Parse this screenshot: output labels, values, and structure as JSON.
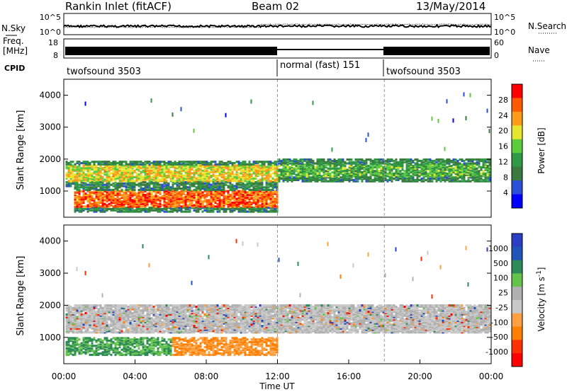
{
  "header": {
    "station": "Rankin Inlet (fitACF)",
    "beam": "Beam 02",
    "date": "13/May/2014"
  },
  "nsky_panel": {
    "left_label": "N.Sky",
    "right_label": "N.Search",
    "left_ticks": [
      "10^5",
      "10^0"
    ],
    "right_ticks": [
      "10^5",
      "10^0"
    ]
  },
  "freq_panel": {
    "left_label_line1": "Freq.",
    "left_label_line2": "[MHz]",
    "right_label": "Nave",
    "left_ticks": [
      "18",
      "8"
    ],
    "right_ticks": [
      "60",
      "0"
    ]
  },
  "cpid_panel": {
    "label": "CPID",
    "segments": [
      {
        "label": "twofsound 3503",
        "start_hour": 0
      },
      {
        "label": "normal (fast) 151",
        "start_hour": 12
      },
      {
        "label": "twofsound 3503",
        "start_hour": 18
      }
    ]
  },
  "colors": {
    "power": [
      "#0000ff",
      "#2b4fd9",
      "#3a7a3e",
      "#2f9a45",
      "#5ccc3d",
      "#e6e62e",
      "#ff9b1a",
      "#ff5a00",
      "#ff0000"
    ],
    "velocity": [
      "#2a3fc4",
      "#1f55b8",
      "#2e8b57",
      "#63c34a",
      "#b0b0b0",
      "#c8c8c8",
      "#ffa040",
      "#ff7f00",
      "#ff3000",
      "#ff0000"
    ]
  },
  "chart_data": [
    {
      "type": "heatmap",
      "name": "Power",
      "xlabel": "",
      "ylabel": "Slant Range [km]",
      "xlim": [
        0,
        24
      ],
      "ylim": [
        180,
        4500
      ],
      "y_ticks": [
        1000,
        2000,
        3000,
        4000
      ],
      "colorbar": {
        "label": "Power [dB]",
        "ticks": [
          4,
          8,
          12,
          16,
          20,
          24,
          28
        ],
        "range": [
          0,
          32
        ]
      },
      "bands": [
        {
          "t0": 0,
          "t1": 12,
          "r0": 1300,
          "r1": 1800,
          "level": 20
        },
        {
          "t0": 12,
          "t1": 24,
          "r0": 1450,
          "r1": 1850,
          "level": 14
        },
        {
          "t0": 0.5,
          "t1": 12,
          "r0": 500,
          "r1": 1000,
          "level": 26
        }
      ]
    },
    {
      "type": "heatmap",
      "name": "Velocity",
      "xlabel": "Time UT",
      "ylabel": "Slant Range [km]",
      "xlim": [
        0,
        24
      ],
      "ylim": [
        180,
        4500
      ],
      "x_ticks": [
        "00:00",
        "04:00",
        "08:00",
        "12:00",
        "16:00",
        "20:00",
        "00:00"
      ],
      "y_ticks": [
        1000,
        2000,
        3000,
        4000
      ],
      "colorbar": {
        "label": "Velocity [m s^-1]",
        "ticks": [
          "1000",
          "500",
          "100",
          "25",
          "-25",
          "-100",
          "-500",
          "-1000"
        ]
      }
    }
  ]
}
